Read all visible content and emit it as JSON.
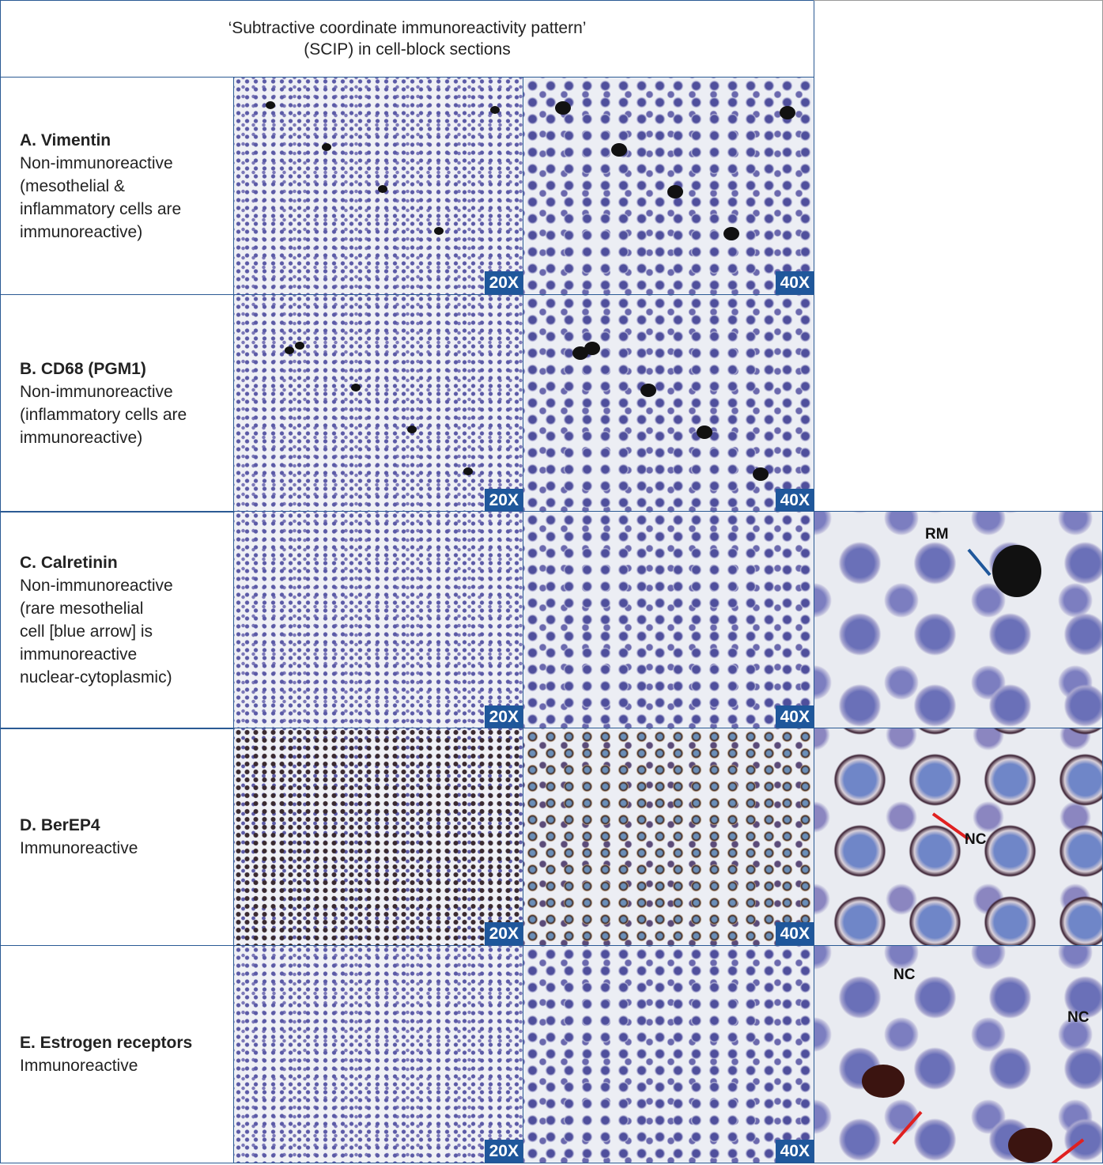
{
  "header": {
    "title": [
      "‘Subtractive coordinate immunoreactivity pattern’",
      "(SCIP) in cell-block sections"
    ]
  },
  "rows": [
    {
      "name": "A. Vimentin",
      "description": [
        "Non-immunoreactive",
        "(mesothelial &",
        "inflammatory cells are",
        "immunoreactive)"
      ],
      "panels": [
        {
          "magnification": "20X"
        },
        {
          "magnification": "40X"
        }
      ]
    },
    {
      "name": "B. CD68 (PGM1)",
      "description": [
        "Non-immunoreactive",
        "(inflammatory cells are",
        "immunoreactive)"
      ],
      "panels": [
        {
          "magnification": "20X"
        },
        {
          "magnification": "40X"
        }
      ]
    },
    {
      "name": "C. Calretinin",
      "description": [
        "Non-immunoreactive",
        "(rare mesothelial",
        "cell [blue arrow] is",
        "immunoreactive",
        "nuclear-cytoplasmic)"
      ],
      "panels": [
        {
          "magnification": "20X"
        },
        {
          "magnification": "40X"
        }
      ],
      "zoom_labels": [
        "RM"
      ]
    },
    {
      "name": "D. BerEP4",
      "description": [
        "Immunoreactive"
      ],
      "panels": [
        {
          "magnification": "20X"
        },
        {
          "magnification": "40X"
        }
      ],
      "zoom_labels": [
        "NC"
      ]
    },
    {
      "name": "E. Estrogen receptors",
      "description": [
        "Immunoreactive"
      ],
      "panels": [
        {
          "magnification": "20X"
        },
        {
          "magnification": "40X"
        }
      ],
      "zoom_labels": [
        "NC",
        "NC"
      ]
    }
  ]
}
